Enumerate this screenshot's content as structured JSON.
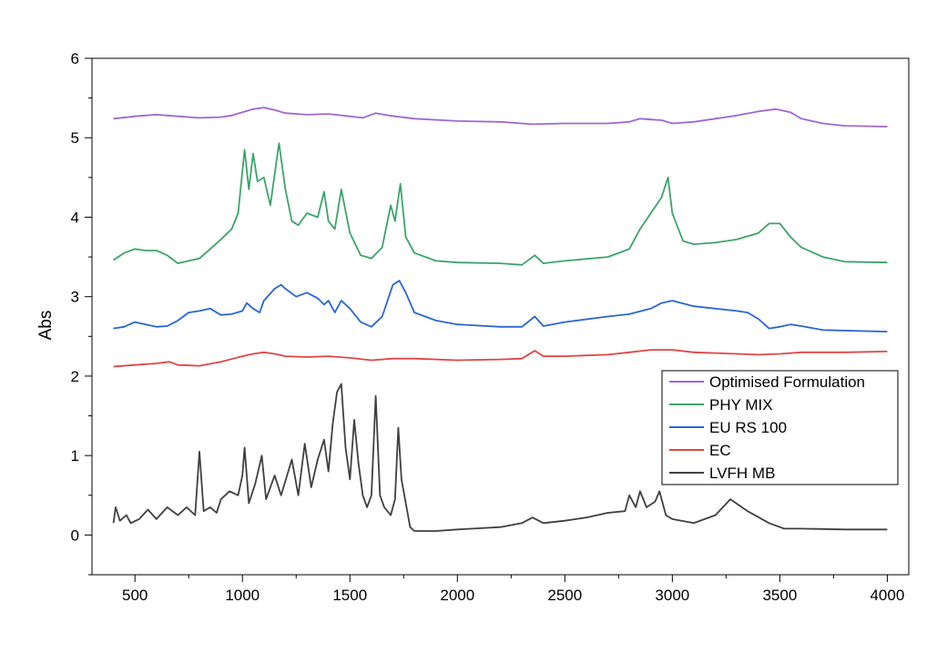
{
  "chart_data": {
    "type": "line",
    "title": "",
    "xlabel": "",
    "ylabel": "Abs",
    "xlim": [
      300,
      4100
    ],
    "ylim": [
      -0.5,
      6
    ],
    "xticks": [
      500,
      1000,
      1500,
      2000,
      2500,
      3000,
      3500,
      4000
    ],
    "yticks": [
      0,
      1,
      2,
      3,
      4,
      5,
      6
    ],
    "grid": false,
    "legend_position": "bottom-right",
    "series": [
      {
        "name": "Optimised Formulation",
        "color": "#a066d3",
        "points": [
          [
            400,
            5.24
          ],
          [
            500,
            5.27
          ],
          [
            600,
            5.29
          ],
          [
            700,
            5.27
          ],
          [
            800,
            5.25
          ],
          [
            900,
            5.26
          ],
          [
            950,
            5.28
          ],
          [
            1000,
            5.32
          ],
          [
            1050,
            5.36
          ],
          [
            1100,
            5.38
          ],
          [
            1150,
            5.35
          ],
          [
            1200,
            5.31
          ],
          [
            1300,
            5.29
          ],
          [
            1400,
            5.3
          ],
          [
            1500,
            5.27
          ],
          [
            1560,
            5.25
          ],
          [
            1620,
            5.31
          ],
          [
            1680,
            5.28
          ],
          [
            1800,
            5.24
          ],
          [
            2000,
            5.21
          ],
          [
            2200,
            5.2
          ],
          [
            2350,
            5.17
          ],
          [
            2500,
            5.18
          ],
          [
            2700,
            5.18
          ],
          [
            2800,
            5.2
          ],
          [
            2850,
            5.24
          ],
          [
            2900,
            5.23
          ],
          [
            2950,
            5.22
          ],
          [
            3000,
            5.18
          ],
          [
            3100,
            5.2
          ],
          [
            3200,
            5.24
          ],
          [
            3300,
            5.28
          ],
          [
            3400,
            5.33
          ],
          [
            3480,
            5.36
          ],
          [
            3550,
            5.32
          ],
          [
            3600,
            5.24
          ],
          [
            3700,
            5.18
          ],
          [
            3800,
            5.15
          ],
          [
            4000,
            5.14
          ]
        ]
      },
      {
        "name": "PHY MIX",
        "color": "#3da36b",
        "points": [
          [
            400,
            3.46
          ],
          [
            450,
            3.55
          ],
          [
            500,
            3.6
          ],
          [
            550,
            3.58
          ],
          [
            600,
            3.58
          ],
          [
            650,
            3.52
          ],
          [
            700,
            3.42
          ],
          [
            750,
            3.45
          ],
          [
            800,
            3.48
          ],
          [
            850,
            3.6
          ],
          [
            900,
            3.72
          ],
          [
            950,
            3.85
          ],
          [
            980,
            4.05
          ],
          [
            1010,
            4.85
          ],
          [
            1030,
            4.35
          ],
          [
            1050,
            4.8
          ],
          [
            1070,
            4.45
          ],
          [
            1100,
            4.5
          ],
          [
            1130,
            4.15
          ],
          [
            1170,
            4.93
          ],
          [
            1200,
            4.35
          ],
          [
            1230,
            3.95
          ],
          [
            1260,
            3.9
          ],
          [
            1300,
            4.05
          ],
          [
            1350,
            4.0
          ],
          [
            1380,
            4.32
          ],
          [
            1400,
            3.95
          ],
          [
            1430,
            3.85
          ],
          [
            1460,
            4.35
          ],
          [
            1500,
            3.8
          ],
          [
            1550,
            3.52
          ],
          [
            1600,
            3.48
          ],
          [
            1650,
            3.62
          ],
          [
            1690,
            4.15
          ],
          [
            1710,
            3.95
          ],
          [
            1735,
            4.42
          ],
          [
            1760,
            3.75
          ],
          [
            1800,
            3.55
          ],
          [
            1900,
            3.45
          ],
          [
            2000,
            3.43
          ],
          [
            2200,
            3.42
          ],
          [
            2300,
            3.4
          ],
          [
            2360,
            3.52
          ],
          [
            2400,
            3.42
          ],
          [
            2500,
            3.45
          ],
          [
            2700,
            3.5
          ],
          [
            2800,
            3.6
          ],
          [
            2850,
            3.85
          ],
          [
            2900,
            4.05
          ],
          [
            2950,
            4.25
          ],
          [
            2980,
            4.5
          ],
          [
            3000,
            4.05
          ],
          [
            3050,
            3.7
          ],
          [
            3100,
            3.66
          ],
          [
            3200,
            3.68
          ],
          [
            3300,
            3.72
          ],
          [
            3400,
            3.8
          ],
          [
            3450,
            3.92
          ],
          [
            3500,
            3.92
          ],
          [
            3550,
            3.75
          ],
          [
            3600,
            3.62
          ],
          [
            3700,
            3.5
          ],
          [
            3800,
            3.44
          ],
          [
            4000,
            3.43
          ]
        ]
      },
      {
        "name": "EU RS 100",
        "color": "#2a66d1",
        "points": [
          [
            400,
            2.6
          ],
          [
            450,
            2.62
          ],
          [
            500,
            2.68
          ],
          [
            550,
            2.65
          ],
          [
            600,
            2.62
          ],
          [
            650,
            2.63
          ],
          [
            700,
            2.7
          ],
          [
            750,
            2.8
          ],
          [
            800,
            2.82
          ],
          [
            850,
            2.85
          ],
          [
            900,
            2.77
          ],
          [
            950,
            2.78
          ],
          [
            1000,
            2.82
          ],
          [
            1020,
            2.92
          ],
          [
            1050,
            2.85
          ],
          [
            1080,
            2.8
          ],
          [
            1100,
            2.95
          ],
          [
            1150,
            3.1
          ],
          [
            1180,
            3.15
          ],
          [
            1200,
            3.1
          ],
          [
            1250,
            3.0
          ],
          [
            1300,
            3.05
          ],
          [
            1350,
            2.98
          ],
          [
            1380,
            2.9
          ],
          [
            1400,
            2.95
          ],
          [
            1430,
            2.8
          ],
          [
            1460,
            2.95
          ],
          [
            1500,
            2.85
          ],
          [
            1550,
            2.68
          ],
          [
            1600,
            2.62
          ],
          [
            1650,
            2.75
          ],
          [
            1700,
            3.15
          ],
          [
            1730,
            3.2
          ],
          [
            1760,
            3.05
          ],
          [
            1800,
            2.8
          ],
          [
            1900,
            2.7
          ],
          [
            2000,
            2.65
          ],
          [
            2200,
            2.62
          ],
          [
            2300,
            2.62
          ],
          [
            2360,
            2.75
          ],
          [
            2400,
            2.63
          ],
          [
            2500,
            2.68
          ],
          [
            2700,
            2.75
          ],
          [
            2800,
            2.78
          ],
          [
            2900,
            2.85
          ],
          [
            2950,
            2.92
          ],
          [
            3000,
            2.95
          ],
          [
            3100,
            2.88
          ],
          [
            3200,
            2.85
          ],
          [
            3300,
            2.82
          ],
          [
            3350,
            2.8
          ],
          [
            3400,
            2.72
          ],
          [
            3450,
            2.6
          ],
          [
            3500,
            2.62
          ],
          [
            3550,
            2.65
          ],
          [
            3600,
            2.63
          ],
          [
            3700,
            2.58
          ],
          [
            4000,
            2.56
          ]
        ]
      },
      {
        "name": "EC",
        "color": "#e04545",
        "points": [
          [
            400,
            2.12
          ],
          [
            500,
            2.14
          ],
          [
            600,
            2.16
          ],
          [
            660,
            2.18
          ],
          [
            700,
            2.14
          ],
          [
            800,
            2.13
          ],
          [
            900,
            2.18
          ],
          [
            1000,
            2.25
          ],
          [
            1050,
            2.28
          ],
          [
            1100,
            2.3
          ],
          [
            1150,
            2.28
          ],
          [
            1200,
            2.25
          ],
          [
            1300,
            2.24
          ],
          [
            1400,
            2.25
          ],
          [
            1500,
            2.23
          ],
          [
            1600,
            2.2
          ],
          [
            1700,
            2.22
          ],
          [
            1800,
            2.22
          ],
          [
            2000,
            2.2
          ],
          [
            2200,
            2.21
          ],
          [
            2300,
            2.22
          ],
          [
            2360,
            2.32
          ],
          [
            2400,
            2.25
          ],
          [
            2500,
            2.25
          ],
          [
            2700,
            2.27
          ],
          [
            2800,
            2.3
          ],
          [
            2900,
            2.33
          ],
          [
            3000,
            2.33
          ],
          [
            3100,
            2.3
          ],
          [
            3200,
            2.29
          ],
          [
            3300,
            2.28
          ],
          [
            3400,
            2.27
          ],
          [
            3500,
            2.28
          ],
          [
            3600,
            2.3
          ],
          [
            3800,
            2.3
          ],
          [
            4000,
            2.31
          ]
        ]
      },
      {
        "name": "LVFH MB",
        "color": "#404040",
        "points": [
          [
            400,
            0.15
          ],
          [
            410,
            0.35
          ],
          [
            430,
            0.18
          ],
          [
            460,
            0.25
          ],
          [
            480,
            0.15
          ],
          [
            520,
            0.2
          ],
          [
            560,
            0.32
          ],
          [
            600,
            0.2
          ],
          [
            650,
            0.35
          ],
          [
            700,
            0.25
          ],
          [
            740,
            0.35
          ],
          [
            780,
            0.25
          ],
          [
            800,
            1.05
          ],
          [
            820,
            0.3
          ],
          [
            850,
            0.35
          ],
          [
            880,
            0.28
          ],
          [
            900,
            0.45
          ],
          [
            940,
            0.55
          ],
          [
            980,
            0.5
          ],
          [
            1000,
            0.75
          ],
          [
            1010,
            1.1
          ],
          [
            1030,
            0.4
          ],
          [
            1060,
            0.65
          ],
          [
            1090,
            1.0
          ],
          [
            1110,
            0.45
          ],
          [
            1150,
            0.75
          ],
          [
            1180,
            0.5
          ],
          [
            1230,
            0.95
          ],
          [
            1260,
            0.5
          ],
          [
            1290,
            1.15
          ],
          [
            1320,
            0.6
          ],
          [
            1350,
            0.95
          ],
          [
            1380,
            1.2
          ],
          [
            1400,
            0.8
          ],
          [
            1420,
            1.4
          ],
          [
            1440,
            1.8
          ],
          [
            1460,
            1.9
          ],
          [
            1480,
            1.1
          ],
          [
            1500,
            0.7
          ],
          [
            1520,
            1.45
          ],
          [
            1540,
            0.9
          ],
          [
            1560,
            0.5
          ],
          [
            1580,
            0.35
          ],
          [
            1600,
            0.5
          ],
          [
            1620,
            1.75
          ],
          [
            1640,
            0.5
          ],
          [
            1660,
            0.35
          ],
          [
            1690,
            0.25
          ],
          [
            1710,
            0.45
          ],
          [
            1725,
            1.35
          ],
          [
            1740,
            0.7
          ],
          [
            1780,
            0.1
          ],
          [
            1800,
            0.05
          ],
          [
            1900,
            0.05
          ],
          [
            2000,
            0.07
          ],
          [
            2200,
            0.1
          ],
          [
            2300,
            0.15
          ],
          [
            2350,
            0.22
          ],
          [
            2400,
            0.15
          ],
          [
            2500,
            0.18
          ],
          [
            2600,
            0.22
          ],
          [
            2700,
            0.28
          ],
          [
            2780,
            0.3
          ],
          [
            2800,
            0.5
          ],
          [
            2830,
            0.35
          ],
          [
            2850,
            0.55
          ],
          [
            2880,
            0.35
          ],
          [
            2920,
            0.42
          ],
          [
            2940,
            0.55
          ],
          [
            2970,
            0.25
          ],
          [
            3000,
            0.2
          ],
          [
            3100,
            0.15
          ],
          [
            3200,
            0.25
          ],
          [
            3270,
            0.45
          ],
          [
            3350,
            0.3
          ],
          [
            3450,
            0.15
          ],
          [
            3520,
            0.08
          ],
          [
            3600,
            0.08
          ],
          [
            3800,
            0.07
          ],
          [
            4000,
            0.07
          ]
        ]
      }
    ]
  }
}
